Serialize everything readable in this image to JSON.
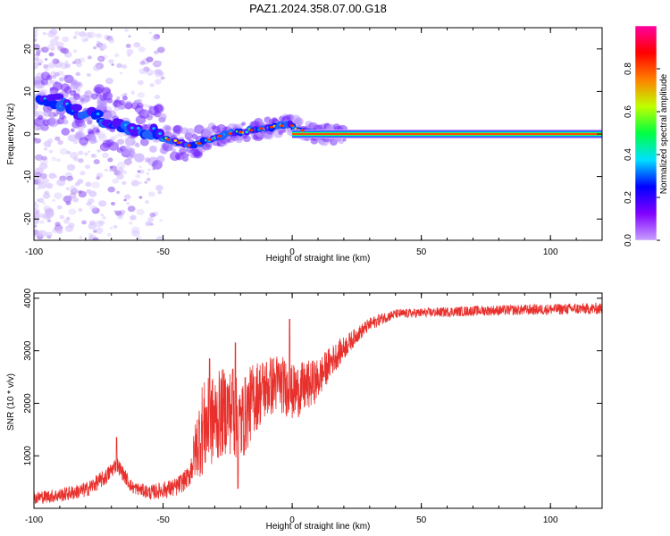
{
  "title": "PAZ1.2024.358.07.00.G18",
  "colors": {
    "snr_line": "#e8302c",
    "axes": "#000000",
    "spectrum_ridge": "#ff0000",
    "colormap": [
      "#c8a0ff",
      "#8000ff",
      "#0000ff",
      "#00e0ff",
      "#00ff40",
      "#c0ff00",
      "#ff8000",
      "#ff0000",
      "#ff00a0"
    ]
  },
  "chart_data": [
    {
      "type": "heatmap",
      "name": "spectrogram",
      "xlabel": "Height of straight line (km)",
      "ylabel": "Frequency (Hz)",
      "xlim": [
        -100,
        120
      ],
      "ylim": [
        -25,
        25
      ],
      "xticks": [
        -100,
        -50,
        0,
        50,
        100
      ],
      "yticks": [
        -20,
        -10,
        0,
        10,
        20
      ],
      "ridge": {
        "x": [
          -98,
          -92,
          -85,
          -80,
          -75,
          -70,
          -65,
          -60,
          -55,
          -50,
          -45,
          -42,
          -39,
          -35,
          -30,
          -25,
          -20,
          -15,
          -10,
          -5,
          -2,
          0,
          3,
          6,
          10,
          15,
          20,
          40,
          80,
          120
        ],
        "y": [
          9,
          8,
          6,
          5,
          4,
          3,
          2,
          1,
          0.5,
          -1,
          -1.8,
          -2.5,
          -2.8,
          -2,
          -0.8,
          0,
          0.5,
          1,
          1.5,
          1.8,
          2.3,
          2,
          1,
          0.5,
          0,
          0,
          0,
          0,
          0,
          0
        ]
      },
      "colorbar": {
        "label": "Normalized spectral amplitude",
        "range": [
          0,
          1
        ],
        "ticks": [
          "0.0",
          "0.2",
          "0.4",
          "0.6",
          "0.8"
        ]
      }
    },
    {
      "type": "line",
      "name": "snr",
      "xlabel": "Height of straight line (km)",
      "ylabel": "SNR (10 * v/v)",
      "xlim": [
        -100,
        120
      ],
      "ylim": [
        0,
        4100
      ],
      "xticks": [
        -100,
        -50,
        0,
        50,
        100
      ],
      "yticks": [
        1000,
        2000,
        3000,
        4000
      ],
      "envelope": {
        "x": [
          -100,
          -90,
          -80,
          -72,
          -68,
          -62,
          -55,
          -45,
          -40,
          -37,
          -35,
          -30,
          -25,
          -20,
          -15,
          -10,
          -5,
          0,
          5,
          10,
          15,
          20,
          25,
          30,
          35,
          40,
          50,
          60,
          70,
          80,
          90,
          100,
          110,
          120
        ],
        "y": [
          200,
          250,
          350,
          600,
          850,
          400,
          300,
          400,
          600,
          1200,
          1500,
          1700,
          1900,
          1600,
          2100,
          2300,
          2400,
          2200,
          2300,
          2450,
          2800,
          3050,
          3300,
          3500,
          3620,
          3700,
          3720,
          3740,
          3760,
          3770,
          3780,
          3790,
          3800,
          3800
        ]
      },
      "noise_amp": {
        "x": [
          -100,
          -70,
          -60,
          -40,
          -35,
          -20,
          -10,
          5,
          15,
          25,
          40,
          120
        ],
        "y": [
          120,
          160,
          120,
          200,
          900,
          800,
          600,
          500,
          300,
          150,
          90,
          110
        ]
      },
      "spikes": [
        {
          "x": -22,
          "y": 3150
        },
        {
          "x": -23,
          "y": 2650
        },
        {
          "x": -1,
          "y": 3600
        },
        {
          "x": -32,
          "y": 2850
        },
        {
          "x": -21,
          "y": 380
        },
        {
          "x": -68,
          "y": 1350
        }
      ]
    }
  ]
}
